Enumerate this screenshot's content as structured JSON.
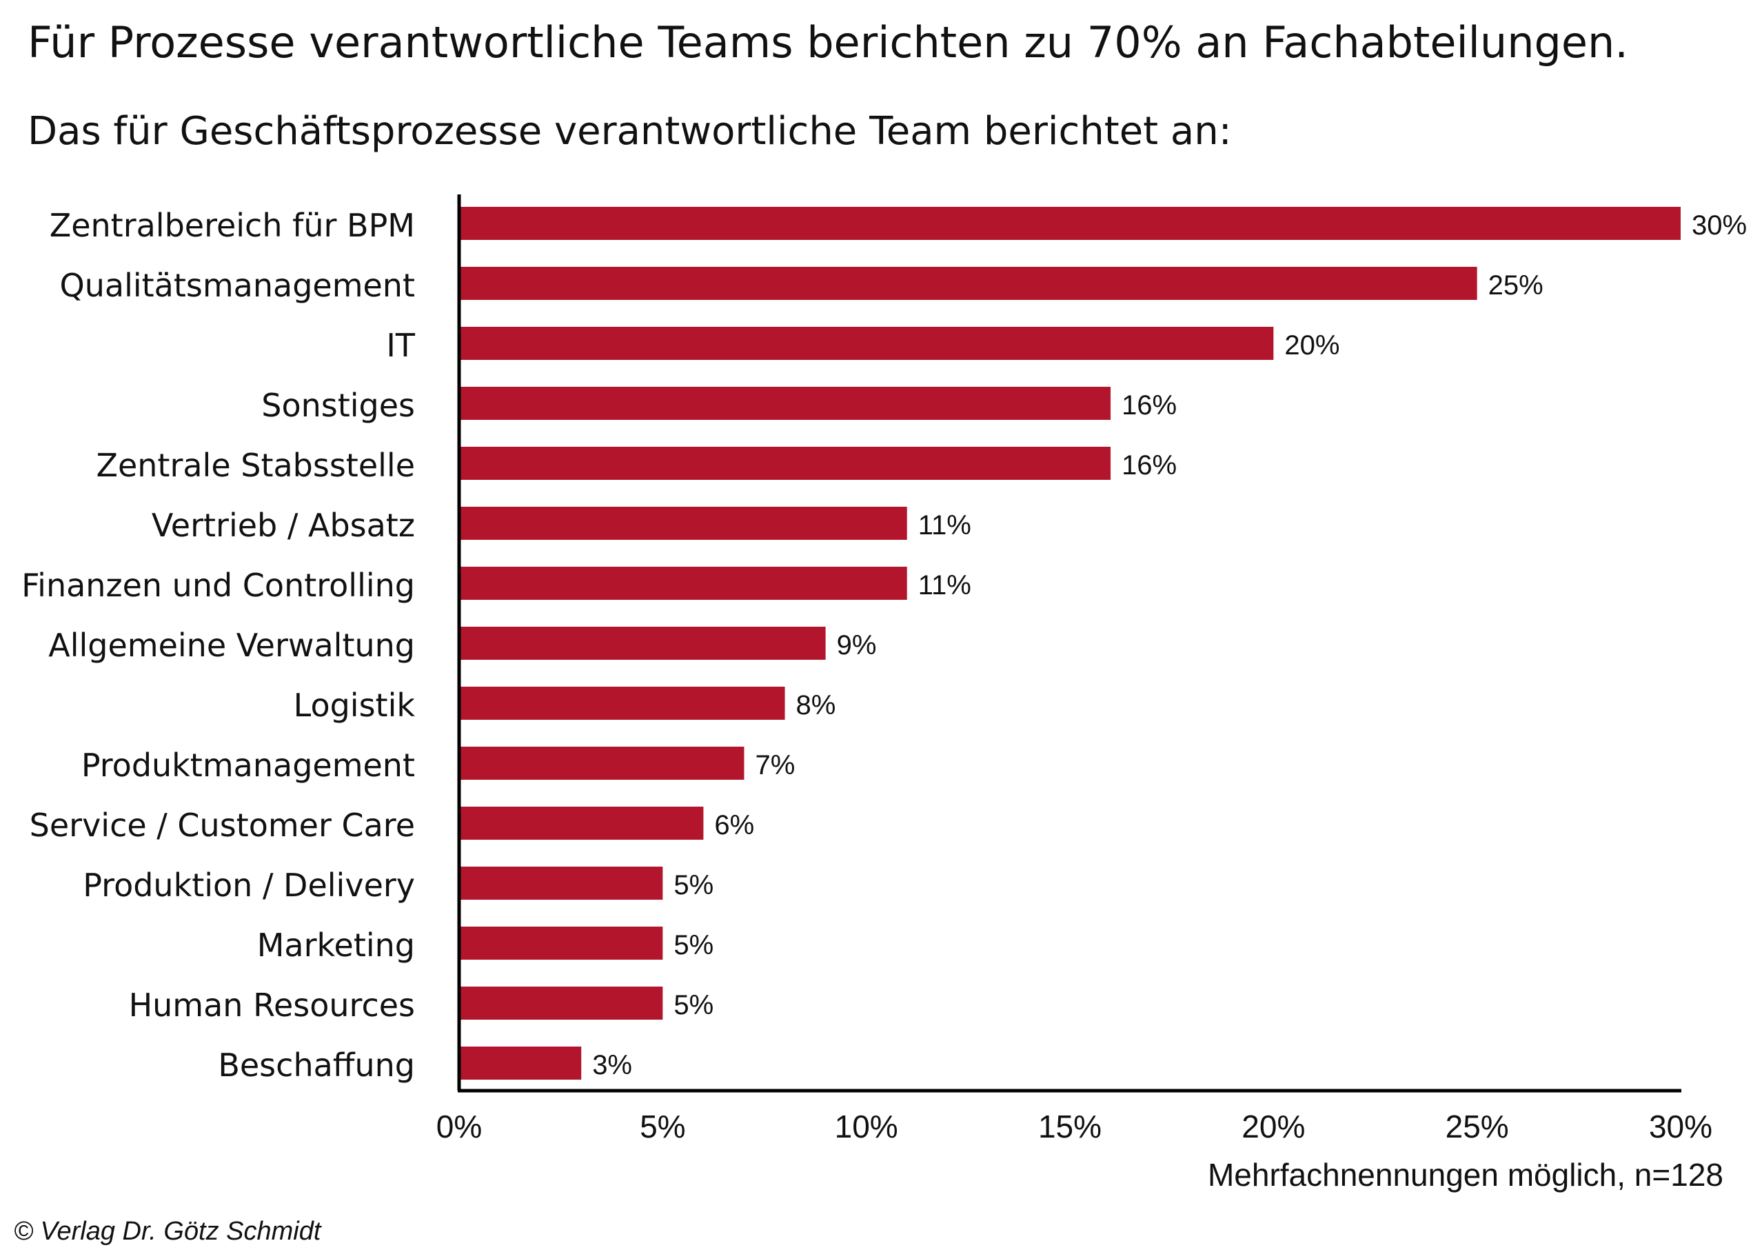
{
  "header": {
    "title": "Für Prozesse verantwortliche Teams berichten zu 70% an Fachabteilungen.",
    "subtitle": "Das für Geschäftsprozesse verantwortliche Team berichtet an:"
  },
  "footer": {
    "note": "Mehrfachnennungen möglich, n=128",
    "copyright": "© Verlag Dr. Götz Schmidt"
  },
  "chart_data": {
    "type": "bar",
    "orientation": "horizontal",
    "categories": [
      "Zentralbereich für BPM",
      "Qualitätsmanagement",
      "IT",
      "Sonstiges",
      "Zentrale Stabsstelle",
      "Vertrieb / Absatz",
      "Finanzen und Controlling",
      "Allgemeine Verwaltung",
      "Logistik",
      "Produktmanagement",
      "Service / Customer Care",
      "Produktion / Delivery",
      "Marketing",
      "Human Resources",
      "Beschaffung"
    ],
    "values": [
      30,
      25,
      20,
      16,
      16,
      11,
      11,
      9,
      8,
      7,
      6,
      5,
      5,
      5,
      3
    ],
    "data_labels": [
      "30%",
      "25%",
      "20%",
      "16%",
      "16%",
      "11%",
      "11%",
      "9%",
      "8%",
      "7%",
      "6%",
      "5%",
      "5%",
      "5%",
      "3%"
    ],
    "xlim": [
      0,
      30
    ],
    "xticks": [
      0,
      5,
      10,
      15,
      20,
      25,
      30
    ],
    "xtick_labels": [
      "0%",
      "5%",
      "10%",
      "15%",
      "20%",
      "25%",
      "30%"
    ],
    "grid": false,
    "bar_color": "#b3162c"
  }
}
